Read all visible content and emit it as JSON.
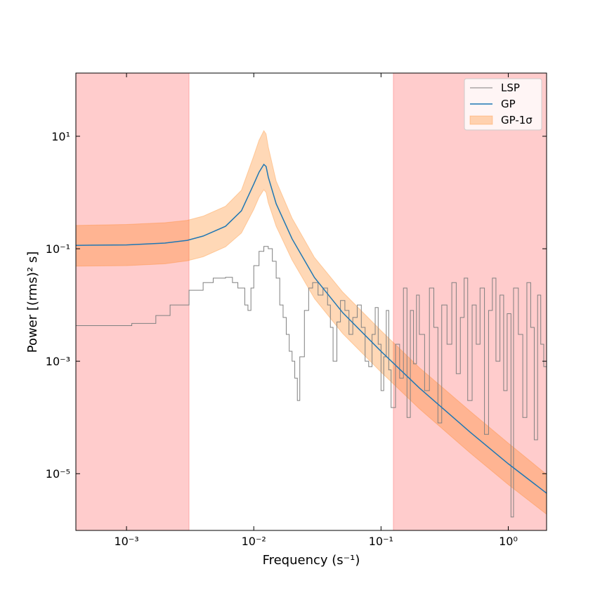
{
  "chart_data": {
    "type": "line",
    "xlabel": "Frequency (s⁻¹)",
    "ylabel": "Power [(rms)² s]",
    "xscale": "log",
    "yscale": "log",
    "xlim": [
      0.0004,
      2
    ],
    "ylim": [
      9.8e-07,
      133
    ],
    "xticks": [
      {
        "value": 0.001,
        "label": "10⁻³"
      },
      {
        "value": 0.01,
        "label": "10⁻²"
      },
      {
        "value": 0.1,
        "label": "10⁻¹"
      },
      {
        "value": 1,
        "label": "10⁰"
      }
    ],
    "yticks": [
      {
        "value": 1e-05,
        "label": "10⁻⁵"
      },
      {
        "value": 0.001,
        "label": "10⁻³"
      },
      {
        "value": 0.1,
        "label": "10⁻¹"
      },
      {
        "value": 10,
        "label": "10¹"
      }
    ],
    "shaded_ranges": [
      [
        0.0004,
        0.0031
      ],
      [
        0.125,
        2
      ]
    ],
    "shade_color": "#ff3333",
    "shade_alpha": 0.25,
    "legend": "upper right",
    "series": [
      {
        "name": "LSP",
        "color": "#808080",
        "drawstyle": "steps",
        "x": [
          0.0004,
          0.0011,
          0.0017,
          0.0022,
          0.0031,
          0.004,
          0.0048,
          0.006,
          0.0068,
          0.0075,
          0.0085,
          0.009,
          0.0095,
          0.01,
          0.011,
          0.012,
          0.013,
          0.014,
          0.015,
          0.016,
          0.017,
          0.018,
          0.019,
          0.02,
          0.021,
          0.022,
          0.023,
          0.025,
          0.027,
          0.029,
          0.032,
          0.035,
          0.038,
          0.04,
          0.042,
          0.045,
          0.048,
          0.052,
          0.056,
          0.06,
          0.065,
          0.07,
          0.075,
          0.08,
          0.085,
          0.09,
          0.095,
          0.1,
          0.105,
          0.11,
          0.115,
          0.12,
          0.13,
          0.14,
          0.15,
          0.16,
          0.17,
          0.18,
          0.19,
          0.2,
          0.22,
          0.24,
          0.26,
          0.28,
          0.3,
          0.33,
          0.36,
          0.39,
          0.42,
          0.45,
          0.48,
          0.52,
          0.56,
          0.6,
          0.65,
          0.7,
          0.75,
          0.8,
          0.86,
          0.92,
          0.98,
          1.05,
          1.1,
          1.2,
          1.3,
          1.4,
          1.5,
          1.6,
          1.7,
          1.8,
          1.9,
          2
        ],
        "values": [
          0.0043,
          0.0047,
          0.0065,
          0.01,
          0.0183,
          0.025,
          0.03,
          0.031,
          0.025,
          0.02,
          0.01,
          0.008,
          0.02,
          0.05,
          0.09,
          0.11,
          0.1,
          0.06,
          0.03,
          0.01,
          0.006,
          0.003,
          0.0015,
          0.001,
          0.0005,
          0.0002,
          0.0012,
          0.008,
          0.02,
          0.025,
          0.015,
          0.02,
          0.01,
          0.004,
          0.001,
          0.005,
          0.012,
          0.008,
          0.003,
          0.006,
          0.01,
          0.004,
          0.001,
          0.0008,
          0.003,
          0.009,
          0.002,
          0.0003,
          0.0012,
          0.008,
          0.0007,
          0.00015,
          0.002,
          0.0005,
          0.02,
          0.0001,
          0.008,
          0.0009,
          0.015,
          0.003,
          0.0003,
          0.02,
          0.004,
          8e-05,
          0.01,
          0.002,
          0.025,
          0.0006,
          0.006,
          0.03,
          0.0002,
          0.01,
          0.002,
          0.02,
          5e-05,
          0.008,
          0.03,
          0.001,
          0.015,
          0.0003,
          0.007,
          1.7e-06,
          0.02,
          0.003,
          0.0001,
          0.025,
          0.004,
          4e-05,
          0.015,
          0.002,
          0.0008,
          0.01
        ]
      },
      {
        "name": "GP",
        "color": "#1f77b4",
        "x": [
          0.0004,
          0.001,
          0.002,
          0.003,
          0.004,
          0.006,
          0.008,
          0.01,
          0.011,
          0.012,
          0.0125,
          0.013,
          0.015,
          0.02,
          0.03,
          0.05,
          0.1,
          0.2,
          0.5,
          1,
          2
        ],
        "values": [
          0.115,
          0.117,
          0.126,
          0.141,
          0.168,
          0.251,
          0.473,
          1.41,
          2.3,
          3.16,
          2.9,
          1.88,
          0.63,
          0.15,
          0.0307,
          0.0073,
          0.0015,
          0.000335,
          5.5e-05,
          1.5e-05,
          4.5e-06
        ]
      },
      {
        "name": "GP-1σ",
        "color": "#ff7f0e",
        "alpha": 0.3,
        "kind": "band",
        "x": [
          0.0004,
          0.001,
          0.002,
          0.003,
          0.004,
          0.006,
          0.008,
          0.01,
          0.011,
          0.012,
          0.0125,
          0.013,
          0.015,
          0.02,
          0.03,
          0.05,
          0.1,
          0.2,
          0.5,
          1,
          2
        ],
        "upper": [
          0.26,
          0.27,
          0.29,
          0.32,
          0.38,
          0.57,
          1.1,
          4.5,
          8.5,
          12.6,
          11,
          6.5,
          1.6,
          0.35,
          0.07,
          0.017,
          0.0035,
          0.00077,
          0.00013,
          3.5e-05,
          9.7e-06
        ],
        "lower": [
          0.049,
          0.05,
          0.054,
          0.061,
          0.072,
          0.108,
          0.19,
          0.5,
          0.82,
          1.12,
          1.0,
          0.66,
          0.25,
          0.063,
          0.013,
          0.0031,
          0.00064,
          0.000143,
          2.35e-05,
          6.4e-06,
          1.9e-06
        ]
      }
    ]
  }
}
